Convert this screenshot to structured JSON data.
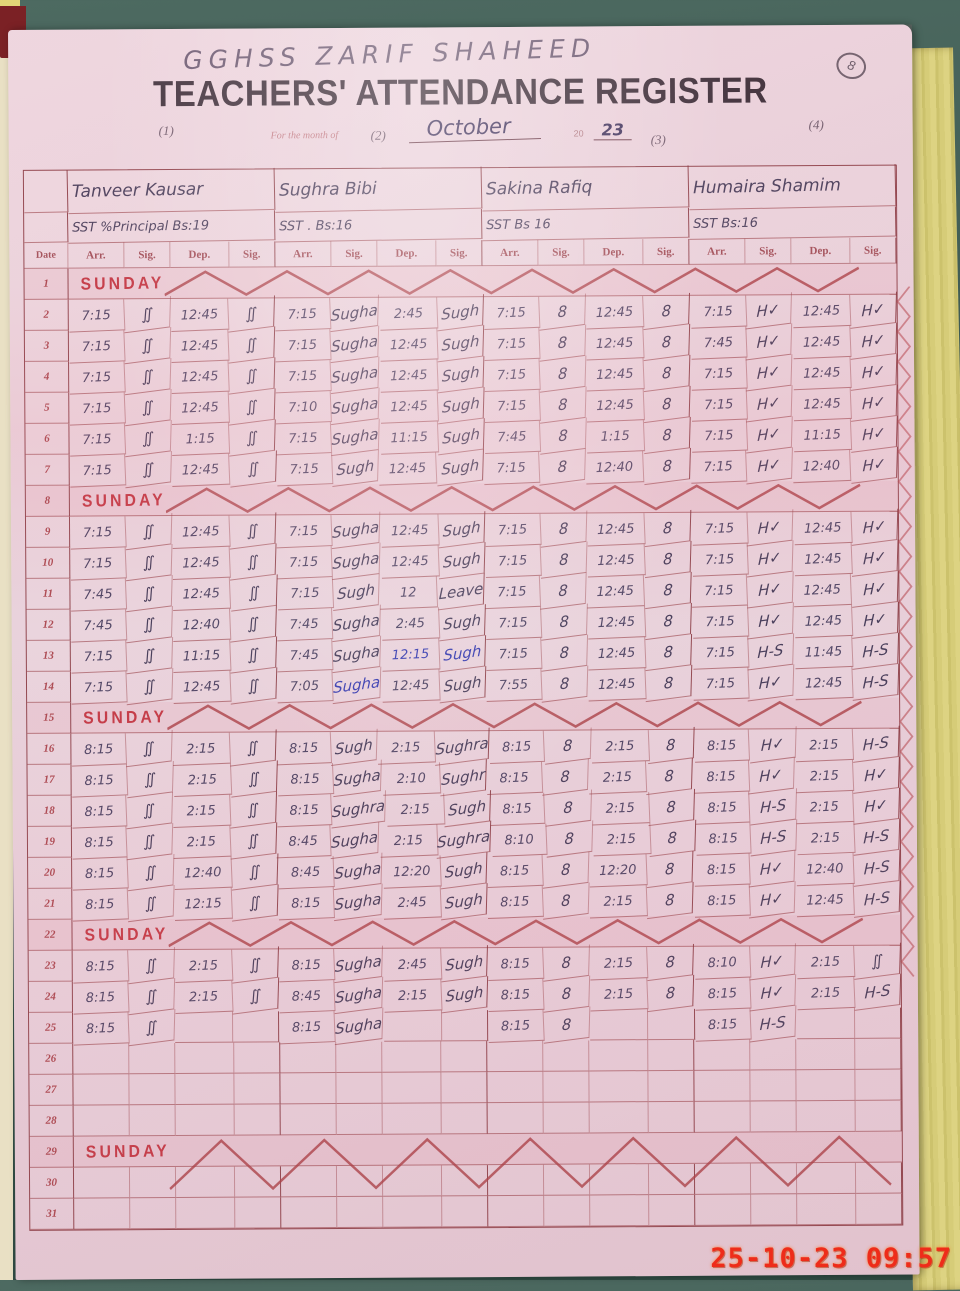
{
  "page": {
    "school_name": "GGHSS  ZARIF  SHAHEED",
    "title": "TEACHERS' ATTENDANCE REGISTER",
    "month_label_prefix": "For the month of",
    "month": "October",
    "year_prefix": "20",
    "year": "23",
    "page_number": "8",
    "column_numbers": [
      "(1)",
      "(2)",
      "(3)",
      "(4)"
    ],
    "timestamp": "25-10-23  09:57"
  },
  "teachers": [
    {
      "name": "Tanveer Kausar",
      "designation": "SST %Principal Bs:19"
    },
    {
      "name": "Sughra Bibi",
      "designation": "SST .   Bs:16"
    },
    {
      "name": "Sakina Rafiq",
      "designation": "SST    Bs 16"
    },
    {
      "name": "Humaira Shamim",
      "designation": "SST    Bs:16"
    }
  ],
  "table": {
    "date_header": "Date",
    "sub_headers": [
      "Arr.",
      "Sig.",
      "Dep.",
      "Sig."
    ],
    "blue_cells": [
      [
        13,
        6
      ],
      [
        13,
        7
      ],
      [
        14,
        5
      ]
    ],
    "rows": [
      {
        "date": "1",
        "type": "sunday",
        "label": "SUNDAY"
      },
      {
        "date": "2",
        "type": "data",
        "cells": [
          "7:15",
          "∬",
          "12:45",
          "∬",
          "7:15",
          "Sugha",
          "2:45",
          "Sugh",
          "7:15",
          "8",
          "12:45",
          "8",
          "7:15",
          "H✓",
          "12:45",
          "H✓"
        ]
      },
      {
        "date": "3",
        "type": "data",
        "cells": [
          "7:15",
          "∬",
          "12:45",
          "∬",
          "7:15",
          "Sugha",
          "12:45",
          "Sugh",
          "7:15",
          "8",
          "12:45",
          "8",
          "7:45",
          "H✓",
          "12:45",
          "H✓"
        ]
      },
      {
        "date": "4",
        "type": "data",
        "cells": [
          "7:15",
          "∬",
          "12:45",
          "∬",
          "7:15",
          "Sugha",
          "12:45",
          "Sugh",
          "7:15",
          "8",
          "12:45",
          "8",
          "7:15",
          "H✓",
          "12:45",
          "H✓"
        ]
      },
      {
        "date": "5",
        "type": "data",
        "cells": [
          "7:15",
          "∬",
          "12:45",
          "∬",
          "7:10",
          "Sugha",
          "12:45",
          "Sugh",
          "7:15",
          "8",
          "12:45",
          "8",
          "7:15",
          "H✓",
          "12:45",
          "H✓"
        ]
      },
      {
        "date": "6",
        "type": "data",
        "cells": [
          "7:15",
          "∬",
          "1:15",
          "∬",
          "7:15",
          "Sugha",
          "11:15",
          "Sugh",
          "7:45",
          "8",
          "1:15",
          "8",
          "7:15",
          "H✓",
          "11:15",
          "H✓"
        ]
      },
      {
        "date": "7",
        "type": "data",
        "cells": [
          "7:15",
          "∬",
          "12:45",
          "∬",
          "7:15",
          "Sugh",
          "12:45",
          "Sugh",
          "7:15",
          "8",
          "12:40",
          "8",
          "7:15",
          "H✓",
          "12:40",
          "H✓"
        ]
      },
      {
        "date": "8",
        "type": "sunday",
        "label": "SUNDAY"
      },
      {
        "date": "9",
        "type": "data",
        "cells": [
          "7:15",
          "∬",
          "12:45",
          "∬",
          "7:15",
          "Sugha",
          "12:45",
          "Sugh",
          "7:15",
          "8",
          "12:45",
          "8",
          "7:15",
          "H✓",
          "12:45",
          "H✓"
        ]
      },
      {
        "date": "10",
        "type": "data",
        "cells": [
          "7:15",
          "∬",
          "12:45",
          "∬",
          "7:15",
          "Sugha",
          "12:45",
          "Sugh",
          "7:15",
          "8",
          "12:45",
          "8",
          "7:15",
          "H✓",
          "12:45",
          "H✓"
        ]
      },
      {
        "date": "11",
        "type": "data",
        "cells": [
          "7:45",
          "∬",
          "12:45",
          "∬",
          "7:15",
          "Sugh",
          "12",
          "Leave",
          "7:15",
          "8",
          "12:45",
          "8",
          "7:15",
          "H✓",
          "12:45",
          "H✓"
        ]
      },
      {
        "date": "12",
        "type": "data",
        "cells": [
          "7:45",
          "∬",
          "12:40",
          "∬",
          "7:45",
          "Sugha",
          "2:45",
          "Sugh",
          "7:15",
          "8",
          "12:45",
          "8",
          "7:15",
          "H✓",
          "12:45",
          "H✓"
        ]
      },
      {
        "date": "13",
        "type": "data",
        "cells": [
          "7:15",
          "∬",
          "11:15",
          "∬",
          "7:45",
          "Sugha",
          "12:15",
          "Sugh",
          "7:15",
          "8",
          "12:45",
          "8",
          "7:15",
          "H-S",
          "11:45",
          "H-S"
        ]
      },
      {
        "date": "14",
        "type": "data",
        "cells": [
          "7:15",
          "∬",
          "12:45",
          "∬",
          "7:05",
          "Sugha",
          "12:45",
          "Sugh",
          "7:55",
          "8",
          "12:45",
          "8",
          "7:15",
          "H✓",
          "12:45",
          "H-S"
        ]
      },
      {
        "date": "15",
        "type": "sunday",
        "label": "SUNDAY"
      },
      {
        "date": "16",
        "type": "data",
        "cells": [
          "8:15",
          "∬",
          "2:15",
          "∬",
          "8:15",
          "Sugh",
          "2:15",
          "Sughra",
          "8:15",
          "8",
          "2:15",
          "8",
          "8:15",
          "H✓",
          "2:15",
          "H-S"
        ]
      },
      {
        "date": "17",
        "type": "data",
        "cells": [
          "8:15",
          "∬",
          "2:15",
          "∬",
          "8:15",
          "Sugha",
          "2:10",
          "Sughr",
          "8:15",
          "8",
          "2:15",
          "8",
          "8:15",
          "H✓",
          "2:15",
          "H✓"
        ]
      },
      {
        "date": "18",
        "type": "data",
        "cells": [
          "8:15",
          "∬",
          "2:15",
          "∬",
          "8:15",
          "Sughra",
          "2:15",
          "Sugh",
          "8:15",
          "8",
          "2:15",
          "8",
          "8:15",
          "H-S",
          "2:15",
          "H✓"
        ]
      },
      {
        "date": "19",
        "type": "data",
        "cells": [
          "8:15",
          "∬",
          "2:15",
          "∬",
          "8:45",
          "Sugha",
          "2:15",
          "Sughra",
          "8:10",
          "8",
          "2:15",
          "8",
          "8:15",
          "H-S",
          "2:15",
          "H-S"
        ]
      },
      {
        "date": "20",
        "type": "data",
        "cells": [
          "8:15",
          "∬",
          "12:40",
          "∬",
          "8:45",
          "Sugha",
          "12:20",
          "Sugh",
          "8:15",
          "8",
          "12:20",
          "8",
          "8:15",
          "H✓",
          "12:40",
          "H-S"
        ]
      },
      {
        "date": "21",
        "type": "data",
        "cells": [
          "8:15",
          "∬",
          "12:15",
          "∬",
          "8:15",
          "Sugha",
          "2:45",
          "Sugh",
          "8:15",
          "8",
          "2:15",
          "8",
          "8:15",
          "H✓",
          "12:45",
          "H-S"
        ]
      },
      {
        "date": "22",
        "type": "sunday",
        "label": "SUNDAY"
      },
      {
        "date": "23",
        "type": "data",
        "cells": [
          "8:15",
          "∬",
          "2:15",
          "∬",
          "8:15",
          "Sugha",
          "2:45",
          "Sugh",
          "8:15",
          "8",
          "2:15",
          "8",
          "8:10",
          "H✓",
          "2:15",
          "∬"
        ]
      },
      {
        "date": "24",
        "type": "data",
        "cells": [
          "8:15",
          "∬",
          "2:15",
          "∬",
          "8:45",
          "Sugha",
          "2:15",
          "Sugh",
          "8:15",
          "8",
          "2:15",
          "8",
          "8:15",
          "H✓",
          "2:15",
          "H-S"
        ]
      },
      {
        "date": "25",
        "type": "data",
        "cells": [
          "8:15",
          "∬",
          "",
          "",
          "8:15",
          "Sugha",
          "",
          "",
          "8:15",
          "8",
          "",
          "",
          "8:15",
          "H-S",
          "",
          ""
        ]
      },
      {
        "date": "26",
        "type": "empty"
      },
      {
        "date": "27",
        "type": "empty"
      },
      {
        "date": "28",
        "type": "empty"
      },
      {
        "date": "29",
        "type": "sunday",
        "label": "SUNDAY",
        "big": true
      },
      {
        "date": "30",
        "type": "empty"
      },
      {
        "date": "31",
        "type": "empty"
      }
    ]
  }
}
